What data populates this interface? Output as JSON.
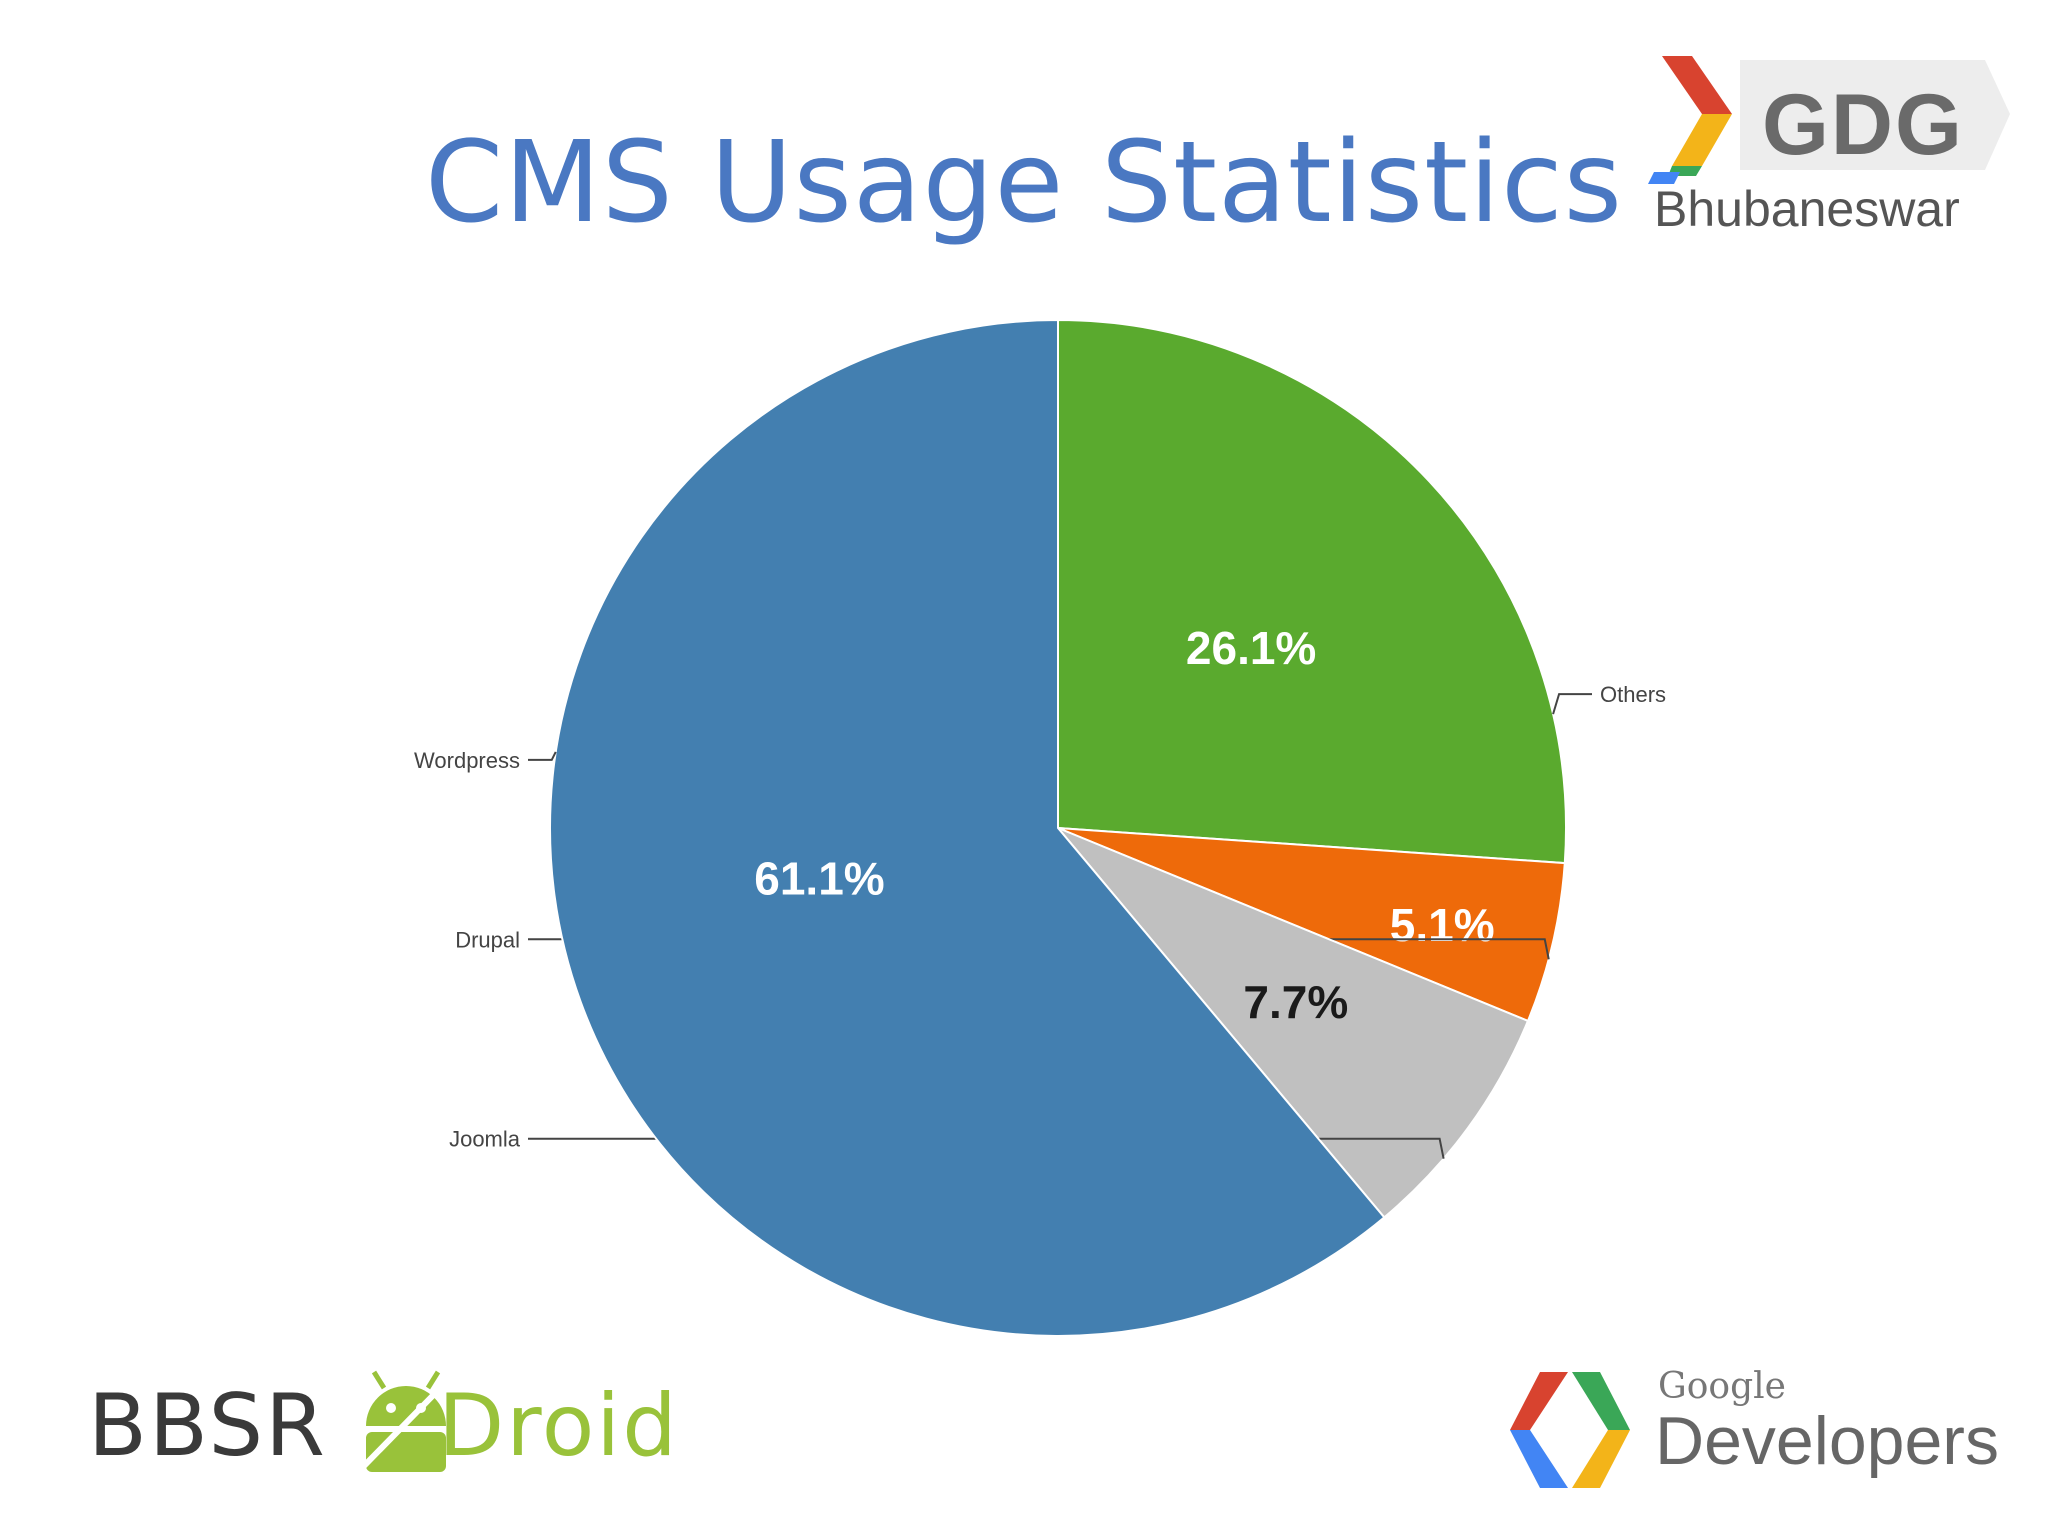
{
  "slide": {
    "title": "CMS Usage Statistics"
  },
  "logos": {
    "gdg": {
      "name": "GDG",
      "city": "Bhubaneswar"
    },
    "bbsr": {
      "part1": "BBSR",
      "part2": "Droid"
    },
    "google_dev": {
      "google": "Google",
      "developers": "Developers"
    }
  },
  "chart_data": {
    "type": "pie",
    "categories": [
      "Others",
      "Drupal",
      "Joomla",
      "Wordpress"
    ],
    "values": [
      26.1,
      5.1,
      7.7,
      61.1
    ],
    "value_labels": [
      "26.1%",
      "5.1%",
      "7.7%",
      "61.1%"
    ],
    "colors": [
      "#5aaa2e",
      "#ee6a0a",
      "#c0c0c0",
      "#437fb0"
    ],
    "value_label_colors": [
      "#ffffff",
      "#ffffff",
      "#1a1a1a",
      "#ffffff"
    ],
    "start": "top",
    "direction": "clockwise",
    "legend": "callout labels beside slices"
  }
}
